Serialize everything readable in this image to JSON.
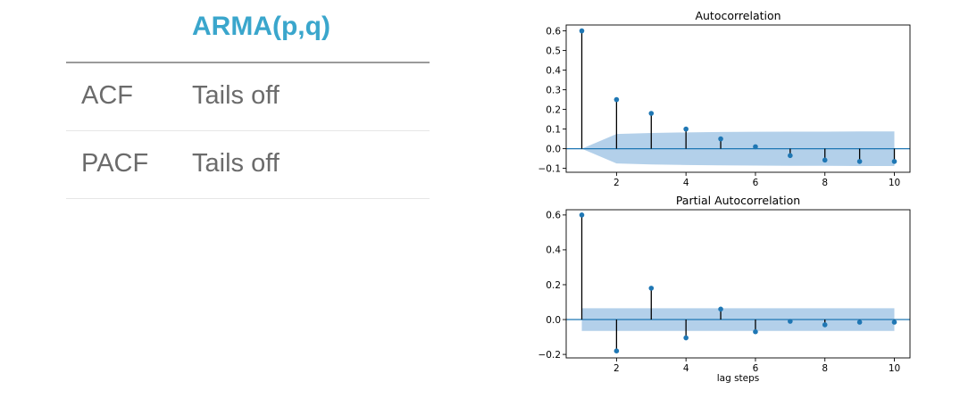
{
  "table": {
    "column_header": "ARMA(p,q)",
    "rows": [
      {
        "label": "ACF",
        "value": "Tails off"
      },
      {
        "label": "PACF",
        "value": "Tails off"
      }
    ]
  },
  "colors": {
    "header": "#3aa6cc",
    "body_text": "#6b6b6b",
    "series": "#1f77b4",
    "confidence_band": "#a6c8e6"
  },
  "chart_data": [
    {
      "type": "stem",
      "title": "Autocorrelation",
      "xlabel": "",
      "ylabel": "",
      "x": [
        1,
        2,
        3,
        4,
        5,
        6,
        7,
        8,
        9,
        10
      ],
      "values": [
        0.6,
        0.25,
        0.18,
        0.1,
        0.05,
        0.01,
        -0.035,
        -0.058,
        -0.065,
        -0.065
      ],
      "confidence_upper": [
        0.0,
        0.075,
        0.08,
        0.083,
        0.085,
        0.086,
        0.087,
        0.087,
        0.088,
        0.088
      ],
      "confidence_lower": [
        0.0,
        -0.075,
        -0.08,
        -0.083,
        -0.085,
        -0.086,
        -0.087,
        -0.087,
        -0.088,
        -0.088
      ],
      "xlim": [
        0.55,
        10.45
      ],
      "ylim": [
        -0.12,
        0.63
      ],
      "xticks": [
        2,
        4,
        6,
        8,
        10
      ],
      "yticks": [
        -0.1,
        0.0,
        0.1,
        0.2,
        0.3,
        0.4,
        0.5,
        0.6
      ],
      "ytick_labels": [
        "−0.1",
        "0.0",
        "0.1",
        "0.2",
        "0.3",
        "0.4",
        "0.5",
        "0.6"
      ],
      "grid": false
    },
    {
      "type": "stem",
      "title": "Partial Autocorrelation",
      "xlabel": "lag steps",
      "ylabel": "",
      "x": [
        1,
        2,
        3,
        4,
        5,
        6,
        7,
        8,
        9,
        10
      ],
      "values": [
        0.6,
        -0.18,
        0.18,
        -0.105,
        0.06,
        -0.07,
        -0.01,
        -0.03,
        -0.015,
        -0.015
      ],
      "confidence_upper": [
        0.065,
        0.065,
        0.065,
        0.065,
        0.065,
        0.065,
        0.065,
        0.065,
        0.065,
        0.065
      ],
      "confidence_lower": [
        -0.065,
        -0.065,
        -0.065,
        -0.065,
        -0.065,
        -0.065,
        -0.065,
        -0.065,
        -0.065,
        -0.065
      ],
      "xlim": [
        0.55,
        10.45
      ],
      "ylim": [
        -0.22,
        0.63
      ],
      "xticks": [
        2,
        4,
        6,
        8,
        10
      ],
      "yticks": [
        -0.2,
        0.0,
        0.2,
        0.4,
        0.6
      ],
      "ytick_labels": [
        "−0.2",
        "0.0",
        "0.2",
        "0.4",
        "0.6"
      ],
      "grid": false
    }
  ]
}
